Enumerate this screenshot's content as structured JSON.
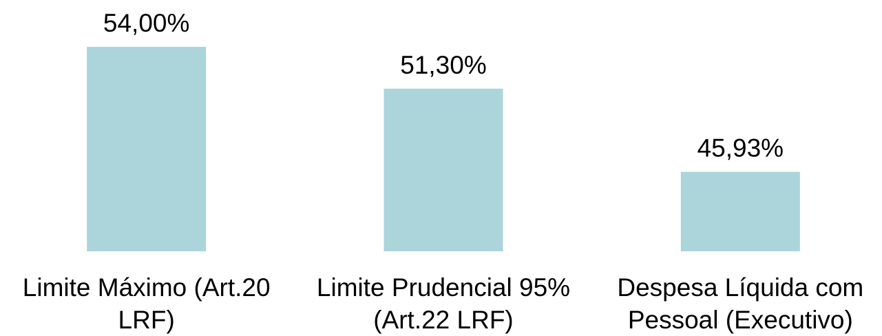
{
  "chart_data": {
    "type": "bar",
    "categories": [
      "Limite Máximo (Art.20 LRF)",
      "Limite Prudencial 95% (Art.22 LRF)",
      "Despesa Líquida com Pessoal (Executivo)"
    ],
    "values": [
      54,
      51.3,
      45.93
    ],
    "value_labels": [
      "54,00%",
      "51,30%",
      "45,93%"
    ],
    "color": "#abd5db",
    "ylim": [
      40.8,
      54
    ]
  }
}
